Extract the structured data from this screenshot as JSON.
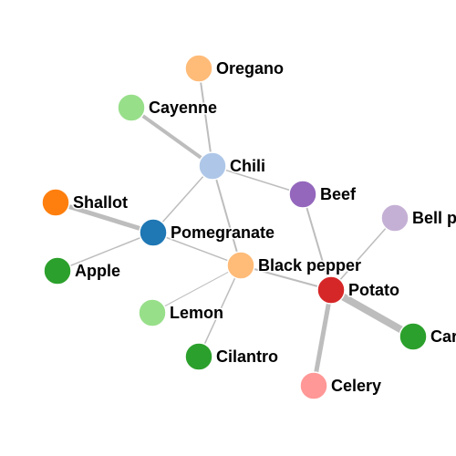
{
  "graph": {
    "nodes": [
      {
        "id": "oregano",
        "label": "Oregano",
        "color": "#ffbb78"
      },
      {
        "id": "cayenne",
        "label": "Cayenne",
        "color": "#98df8a"
      },
      {
        "id": "chili",
        "label": "Chili",
        "color": "#aec7e8"
      },
      {
        "id": "beef",
        "label": "Beef",
        "color": "#9467bd"
      },
      {
        "id": "shallot",
        "label": "Shallot",
        "color": "#ff7f0e"
      },
      {
        "id": "pomegranate",
        "label": "Pomegranate",
        "color": "#1f77b4"
      },
      {
        "id": "bell-pepper",
        "label": "Bell pepper",
        "color": "#c5b0d5"
      },
      {
        "id": "apple",
        "label": "Apple",
        "color": "#2ca02c"
      },
      {
        "id": "black-pepper",
        "label": "Black pepper",
        "color": "#ffbb78"
      },
      {
        "id": "potato",
        "label": "Potato",
        "color": "#d62728"
      },
      {
        "id": "lemon",
        "label": "Lemon",
        "color": "#98df8a"
      },
      {
        "id": "carrot",
        "label": "Carrot",
        "color": "#2ca02c"
      },
      {
        "id": "cilantro",
        "label": "Cilantro",
        "color": "#2ca02c"
      },
      {
        "id": "celery",
        "label": "Celery",
        "color": "#ff9896"
      }
    ],
    "edges": [
      {
        "source": "oregano",
        "target": "chili",
        "weight": 2
      },
      {
        "source": "cayenne",
        "target": "chili",
        "weight": 4
      },
      {
        "source": "chili",
        "target": "beef",
        "weight": 1.5
      },
      {
        "source": "chili",
        "target": "pomegranate",
        "weight": 1.5
      },
      {
        "source": "chili",
        "target": "black-pepper",
        "weight": 2
      },
      {
        "source": "shallot",
        "target": "pomegranate",
        "weight": 5
      },
      {
        "source": "apple",
        "target": "pomegranate",
        "weight": 1.5
      },
      {
        "source": "pomegranate",
        "target": "black-pepper",
        "weight": 1.5
      },
      {
        "source": "black-pepper",
        "target": "lemon",
        "weight": 1
      },
      {
        "source": "black-pepper",
        "target": "cilantro",
        "weight": 1.5
      },
      {
        "source": "black-pepper",
        "target": "potato",
        "weight": 2
      },
      {
        "source": "beef",
        "target": "potato",
        "weight": 2
      },
      {
        "source": "bell-pepper",
        "target": "potato",
        "weight": 1.5
      },
      {
        "source": "potato",
        "target": "carrot",
        "weight": 8
      },
      {
        "source": "potato",
        "target": "celery",
        "weight": 5
      }
    ]
  }
}
